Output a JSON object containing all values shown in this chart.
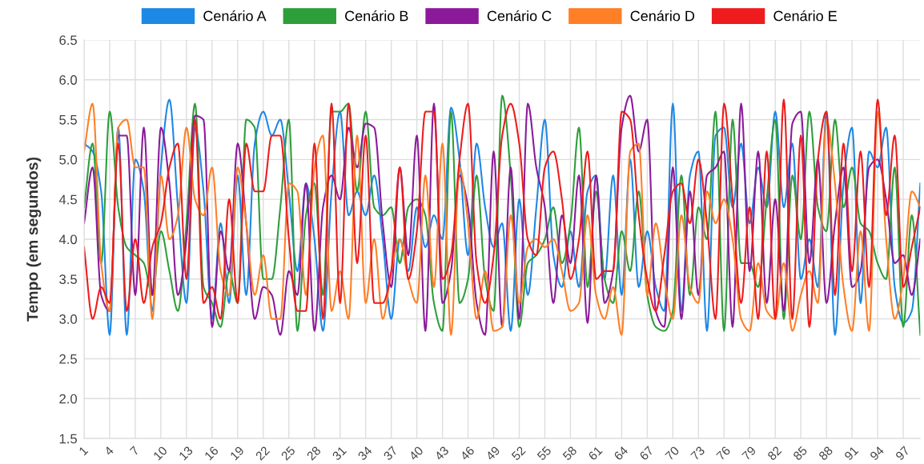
{
  "chart_data": {
    "type": "line",
    "ylabel": "Tempo (em segundos)",
    "categories": [
      "1",
      null,
      null,
      "4",
      null,
      null,
      "7",
      null,
      null,
      "10",
      null,
      null,
      "13",
      null,
      null,
      "16",
      null,
      null,
      "19",
      null,
      null,
      "22",
      null,
      null,
      "25",
      null,
      null,
      "28",
      null,
      null,
      "31",
      null,
      null,
      "34",
      null,
      null,
      "37",
      null,
      null,
      "40",
      null,
      null,
      "43",
      null,
      null,
      "46",
      null,
      null,
      "49",
      null,
      null,
      "52",
      null,
      null,
      "55",
      null,
      null,
      "58",
      null,
      null,
      "61",
      null,
      null,
      "64",
      null,
      null,
      "67",
      null,
      null,
      "70",
      null,
      null,
      "73",
      null,
      null,
      "76",
      null,
      null,
      "79",
      null,
      null,
      "82",
      null,
      null,
      "85",
      null,
      null,
      "88",
      null,
      null,
      "91",
      null,
      null,
      "94",
      null,
      null,
      "97",
      null,
      null
    ],
    "series": [
      {
        "name": "Cenário A",
        "color": "#1e88e5",
        "values": [
          5.2,
          5.1,
          4.6,
          2.8,
          5.4,
          2.8,
          5.0,
          4.6,
          3.1,
          4.9,
          5.75,
          4.4,
          3.2,
          5.4,
          4.6,
          3.0,
          4.2,
          3.2,
          4.8,
          3.3,
          5.2,
          5.6,
          5.3,
          5.5,
          4.6,
          3.6,
          4.7,
          4.0,
          2.85,
          4.6,
          5.6,
          4.3,
          4.6,
          4.3,
          4.8,
          4.0,
          3.0,
          4.0,
          3.6,
          4.4,
          3.9,
          4.3,
          4.0,
          5.65,
          5.0,
          3.8,
          5.2,
          4.4,
          3.9,
          4.2,
          2.85,
          4.5,
          3.3,
          4.4,
          5.5,
          3.8,
          3.4,
          4.1,
          3.4,
          4.6,
          4.8,
          3.5,
          4.8,
          3.3,
          5.0,
          3.4,
          4.1,
          3.4,
          3.1,
          5.7,
          3.1,
          4.8,
          5.1,
          2.85,
          5.3,
          5.4,
          4.4,
          5.2,
          4.2,
          4.9,
          4.4,
          5.6,
          4.4,
          5.2,
          3.5,
          4.0,
          3.4,
          5.6,
          2.8,
          4.7,
          5.4,
          3.2,
          5.1,
          4.9,
          5.4,
          3.4,
          2.95,
          3.1,
          4.7
        ]
      },
      {
        "name": "Cenário B",
        "color": "#2e9e3a",
        "values": [
          4.4,
          5.2,
          3.7,
          5.6,
          4.4,
          3.9,
          3.8,
          3.7,
          3.3,
          4.1,
          3.6,
          3.1,
          4.2,
          5.7,
          3.4,
          3.2,
          2.9,
          3.6,
          3.2,
          5.5,
          5.4,
          3.5,
          3.5,
          4.4,
          5.5,
          2.85,
          4.3,
          4.7,
          3.3,
          5.6,
          5.6,
          5.7,
          4.6,
          5.6,
          4.4,
          4.3,
          4.4,
          3.7,
          4.4,
          4.5,
          4.3,
          3.2,
          2.85,
          5.6,
          3.2,
          3.5,
          4.8,
          3.5,
          3.1,
          5.8,
          4.8,
          2.9,
          3.7,
          3.8,
          4.0,
          4.4,
          3.7,
          4.2,
          5.4,
          3.4,
          4.6,
          3.5,
          3.2,
          4.1,
          3.6,
          4.6,
          3.3,
          2.9,
          2.85,
          3.1,
          4.8,
          3.3,
          4.4,
          4.0,
          5.6,
          2.85,
          5.5,
          3.7,
          3.7,
          3.4,
          4.5,
          5.5,
          3.0,
          4.8,
          4.0,
          5.6,
          4.4,
          4.1,
          5.5,
          4.4,
          4.9,
          4.2,
          4.1,
          3.7,
          3.5,
          4.9,
          2.9,
          4.3,
          2.8
        ]
      },
      {
        "name": "Cenário C",
        "color": "#8b1a9b",
        "values": [
          4.2,
          4.9,
          3.3,
          3.1,
          5.3,
          5.3,
          3.3,
          5.4,
          3.3,
          5.4,
          4.7,
          3.3,
          4.0,
          5.55,
          5.5,
          2.9,
          4.1,
          3.6,
          5.2,
          4.2,
          3.0,
          3.4,
          3.3,
          2.8,
          3.6,
          3.3,
          4.7,
          2.85,
          4.4,
          4.8,
          4.5,
          5.4,
          4.9,
          5.45,
          5.4,
          4.2,
          3.4,
          4.9,
          3.8,
          5.3,
          2.85,
          5.7,
          3.2,
          3.6,
          4.8,
          4.4,
          3.2,
          2.8,
          5.1,
          2.9,
          4.9,
          3.0,
          5.7,
          4.9,
          4.4,
          3.2,
          4.3,
          3.7,
          4.8,
          2.95,
          4.8,
          3.2,
          3.6,
          5.4,
          5.8,
          5.1,
          5.5,
          3.1,
          2.9,
          4.9,
          3.0,
          4.6,
          3.3,
          4.8,
          4.9,
          5.1,
          2.9,
          5.7,
          3.6,
          5.1,
          3.2,
          4.5,
          3.1,
          5.45,
          5.6,
          3.7,
          5.0,
          3.2,
          4.2,
          4.9,
          3.4,
          3.6,
          4.9,
          5.0,
          4.5,
          3.7,
          3.8,
          3.3,
          4.0
        ]
      },
      {
        "name": "Cenário D",
        "color": "#ff7f27",
        "values": [
          5.1,
          5.7,
          3.7,
          3.1,
          5.4,
          5.5,
          4.9,
          4.9,
          3.0,
          4.8,
          4.0,
          4.3,
          5.4,
          4.5,
          4.3,
          4.9,
          3.6,
          3.3,
          4.9,
          4.2,
          3.3,
          3.8,
          3.0,
          3.0,
          4.7,
          4.6,
          3.3,
          4.9,
          5.3,
          3.1,
          3.6,
          3.0,
          5.3,
          3.2,
          4.0,
          3.0,
          3.6,
          4.0,
          3.5,
          3.2,
          4.8,
          3.4,
          5.2,
          2.8,
          4.9,
          4.2,
          3.0,
          3.6,
          2.85,
          2.9,
          4.3,
          3.2,
          3.9,
          4.0,
          3.9,
          4.0,
          3.6,
          3.1,
          3.2,
          4.3,
          3.3,
          3.0,
          3.4,
          2.8,
          5.1,
          5.2,
          3.3,
          4.2,
          3.5,
          3.0,
          4.3,
          3.4,
          3.2,
          4.6,
          4.2,
          4.5,
          4.0,
          3.0,
          2.85,
          3.7,
          3.1,
          3.0,
          3.7,
          2.85,
          3.3,
          3.6,
          3.2,
          5.5,
          4.7,
          3.4,
          2.85,
          4.1,
          2.85,
          5.6,
          4.0,
          3.0,
          3.5,
          4.6,
          4.4
        ]
      },
      {
        "name": "Cenário E",
        "color": "#ee1c1c",
        "values": [
          3.9,
          3.0,
          3.4,
          3.2,
          5.2,
          3.1,
          4.0,
          3.2,
          3.9,
          4.2,
          4.9,
          5.2,
          3.5,
          5.5,
          3.2,
          3.4,
          3.0,
          4.5,
          3.2,
          5.2,
          4.6,
          4.6,
          5.3,
          5.3,
          4.0,
          3.1,
          3.1,
          5.2,
          3.0,
          5.7,
          3.2,
          5.7,
          3.7,
          5.3,
          3.2,
          3.2,
          3.6,
          4.9,
          3.5,
          4.1,
          5.6,
          5.6,
          3.5,
          3.8,
          5.0,
          5.7,
          3.7,
          3.2,
          3.8,
          5.3,
          5.7,
          5.2,
          4.0,
          3.8,
          4.9,
          5.1,
          4.5,
          3.5,
          4.0,
          5.1,
          3.5,
          3.6,
          3.6,
          5.6,
          5.5,
          4.3,
          3.5,
          3.1,
          3.8,
          4.6,
          4.7,
          4.2,
          5.0,
          4.2,
          3.0,
          5.7,
          4.5,
          3.2,
          4.4,
          3.0,
          5.1,
          3.0,
          5.75,
          3.0,
          5.3,
          2.9,
          5.0,
          5.6,
          3.3,
          5.2,
          3.6,
          5.1,
          3.4,
          5.75,
          4.3,
          5.3,
          3.4,
          3.9,
          4.4
        ]
      }
    ],
    "ylim": [
      1.5,
      6.5
    ],
    "yticks": [
      1.5,
      {
        "value": 2,
        "label": "2.0"
      },
      2.5,
      {
        "value": 3,
        "label": "3.0"
      },
      3.5,
      {
        "value": 4,
        "label": "4.0"
      },
      4.5,
      {
        "value": 5,
        "label": "5.0"
      },
      5.5,
      {
        "value": 6,
        "label": "6.0"
      },
      6.5
    ],
    "grid": true,
    "legend": "top",
    "marker": "none",
    "line_style": "solid"
  }
}
